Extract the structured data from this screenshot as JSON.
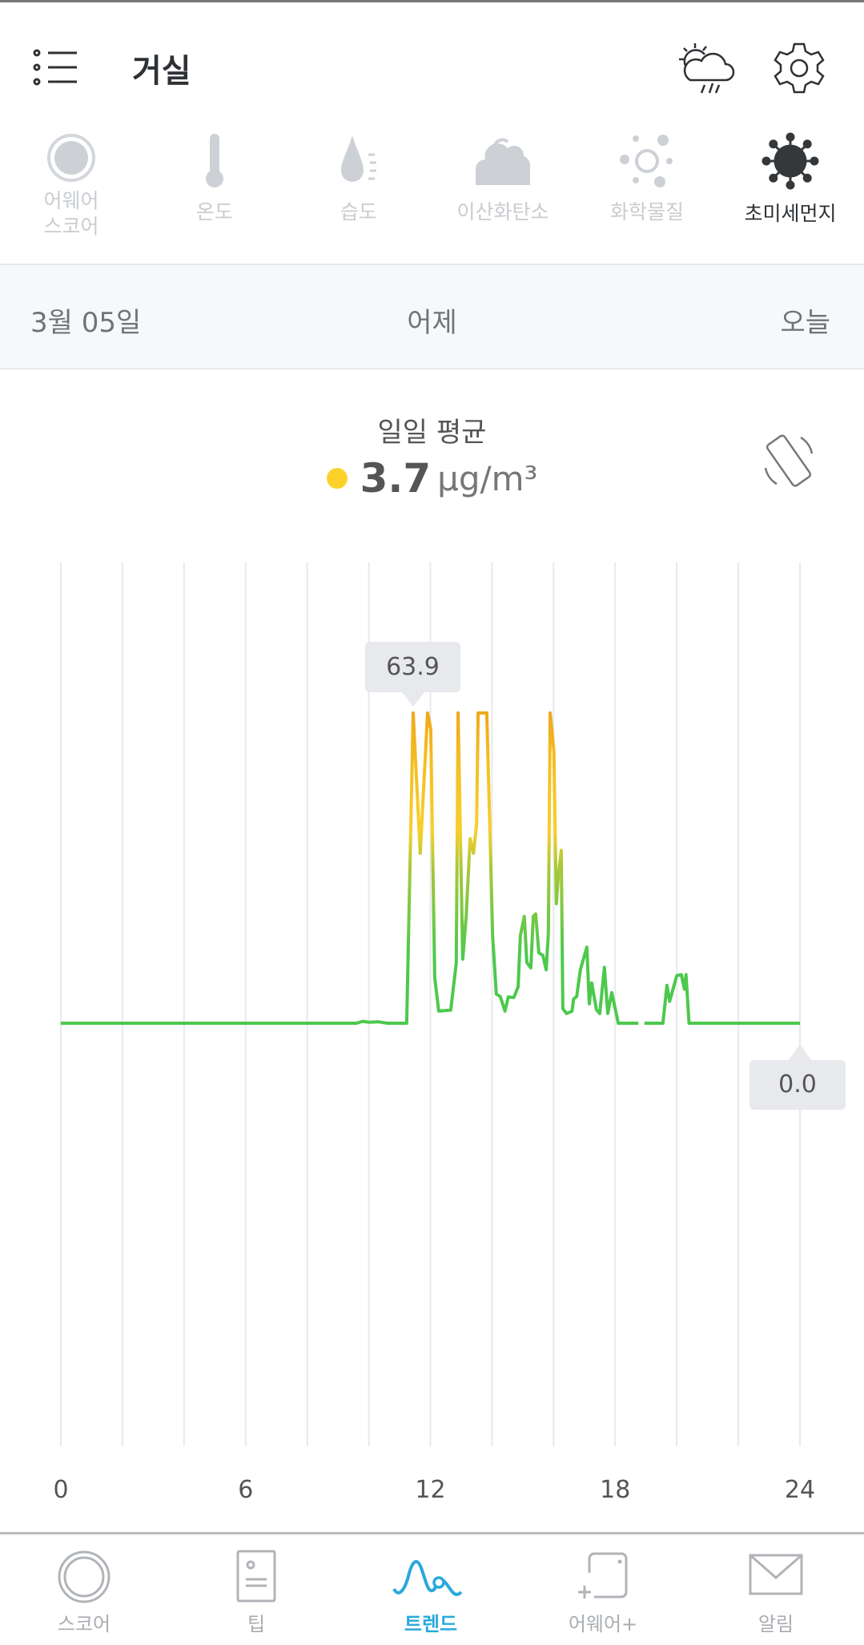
{
  "header": {
    "title": "거실",
    "menu_icon": "list-menu-icon",
    "weather_icon": "partly-cloudy-rain-icon",
    "settings_icon": "gear-icon"
  },
  "tabs": [
    {
      "label": "어웨어\n스코어",
      "icon": "score-ring-icon"
    },
    {
      "label": "온도",
      "icon": "thermometer-icon"
    },
    {
      "label": "습도",
      "icon": "humidity-drop-icon"
    },
    {
      "label": "이산화탄소",
      "icon": "co2-cloud-icon"
    },
    {
      "label": "화학물질",
      "icon": "chemicals-icon"
    },
    {
      "label": "초미세먼지",
      "icon": "pm25-particle-icon",
      "active": true
    }
  ],
  "datebar": {
    "date": "3월 05일",
    "center": "어제",
    "right": "오늘"
  },
  "summary": {
    "label": "일일 평균",
    "value": "3.7",
    "unit": "μg/m³",
    "status_color": "#fcd22a",
    "rotate_icon": "rotate-screen-icon"
  },
  "chart_data": {
    "type": "line",
    "xlabel": "",
    "ylabel": "",
    "xlim": [
      0,
      24
    ],
    "xticks": [
      "0",
      "6",
      "12",
      "18",
      "24"
    ],
    "grid": "vertical every 2 hours",
    "max_label": "63.9",
    "current_label": "0.0",
    "colors": {
      "low": "#4cc94c",
      "mid": "#f8cf2a",
      "high": "#f0a81c"
    },
    "points": [
      [
        0,
        0
      ],
      [
        9.6,
        0
      ],
      [
        9.8,
        0.4
      ],
      [
        10,
        0.2
      ],
      [
        10.3,
        0.3
      ],
      [
        10.6,
        0
      ],
      [
        11.23,
        0
      ],
      [
        11.44,
        63.9
      ],
      [
        11.67,
        35
      ],
      [
        11.91,
        63.9
      ],
      [
        12.01,
        60.6
      ],
      [
        12.14,
        9.4
      ],
      [
        12.27,
        2.5
      ],
      [
        12.66,
        2.7
      ],
      [
        12.84,
        12.4
      ],
      [
        12.9,
        63.9
      ],
      [
        12.97,
        40
      ],
      [
        13.05,
        13.2
      ],
      [
        13.16,
        21.8
      ],
      [
        13.29,
        38
      ],
      [
        13.4,
        35
      ],
      [
        13.5,
        41
      ],
      [
        13.55,
        63.9
      ],
      [
        13.83,
        63.9
      ],
      [
        13.94,
        38
      ],
      [
        14.02,
        18
      ],
      [
        14.14,
        6
      ],
      [
        14.27,
        5.5
      ],
      [
        14.42,
        2.5
      ],
      [
        14.53,
        5.4
      ],
      [
        14.71,
        5.3
      ],
      [
        14.85,
        7.5
      ],
      [
        14.92,
        18
      ],
      [
        15.05,
        22
      ],
      [
        15.13,
        12.5
      ],
      [
        15.26,
        11.4
      ],
      [
        15.34,
        22
      ],
      [
        15.42,
        22.5
      ],
      [
        15.52,
        14.5
      ],
      [
        15.65,
        14
      ],
      [
        15.76,
        11
      ],
      [
        15.83,
        18.5
      ],
      [
        15.89,
        63.9
      ],
      [
        16.01,
        56
      ],
      [
        16.09,
        24.6
      ],
      [
        16.15,
        30
      ],
      [
        16.25,
        35.6
      ],
      [
        16.3,
        3
      ],
      [
        16.42,
        2
      ],
      [
        16.6,
        2.5
      ],
      [
        16.65,
        5
      ],
      [
        16.75,
        5.5
      ],
      [
        16.87,
        11
      ],
      [
        17.08,
        15.7
      ],
      [
        17.16,
        4
      ],
      [
        17.24,
        8.3
      ],
      [
        17.39,
        2.8
      ],
      [
        17.5,
        2
      ],
      [
        17.65,
        11.5
      ],
      [
        17.76,
        2
      ],
      [
        17.89,
        6.3
      ],
      [
        18.1,
        0
      ],
      [
        18.75,
        0
      ],
      null,
      [
        18.95,
        0
      ],
      [
        19.55,
        0
      ],
      [
        19.68,
        7.8
      ],
      [
        19.77,
        4.5
      ],
      [
        20.0,
        9.8
      ],
      [
        20.15,
        10
      ],
      [
        20.25,
        7
      ],
      [
        20.3,
        10
      ],
      [
        20.4,
        0
      ],
      [
        24,
        0
      ]
    ]
  },
  "bottom_nav": [
    {
      "label": "스코어",
      "icon": "score-circle-icon"
    },
    {
      "label": "팁",
      "icon": "tip-card-icon"
    },
    {
      "label": "트렌드",
      "icon": "trend-wave-icon",
      "active": true
    },
    {
      "label": "어웨어+",
      "icon": "awair-plus-icon"
    },
    {
      "label": "알림",
      "icon": "mail-icon"
    }
  ]
}
